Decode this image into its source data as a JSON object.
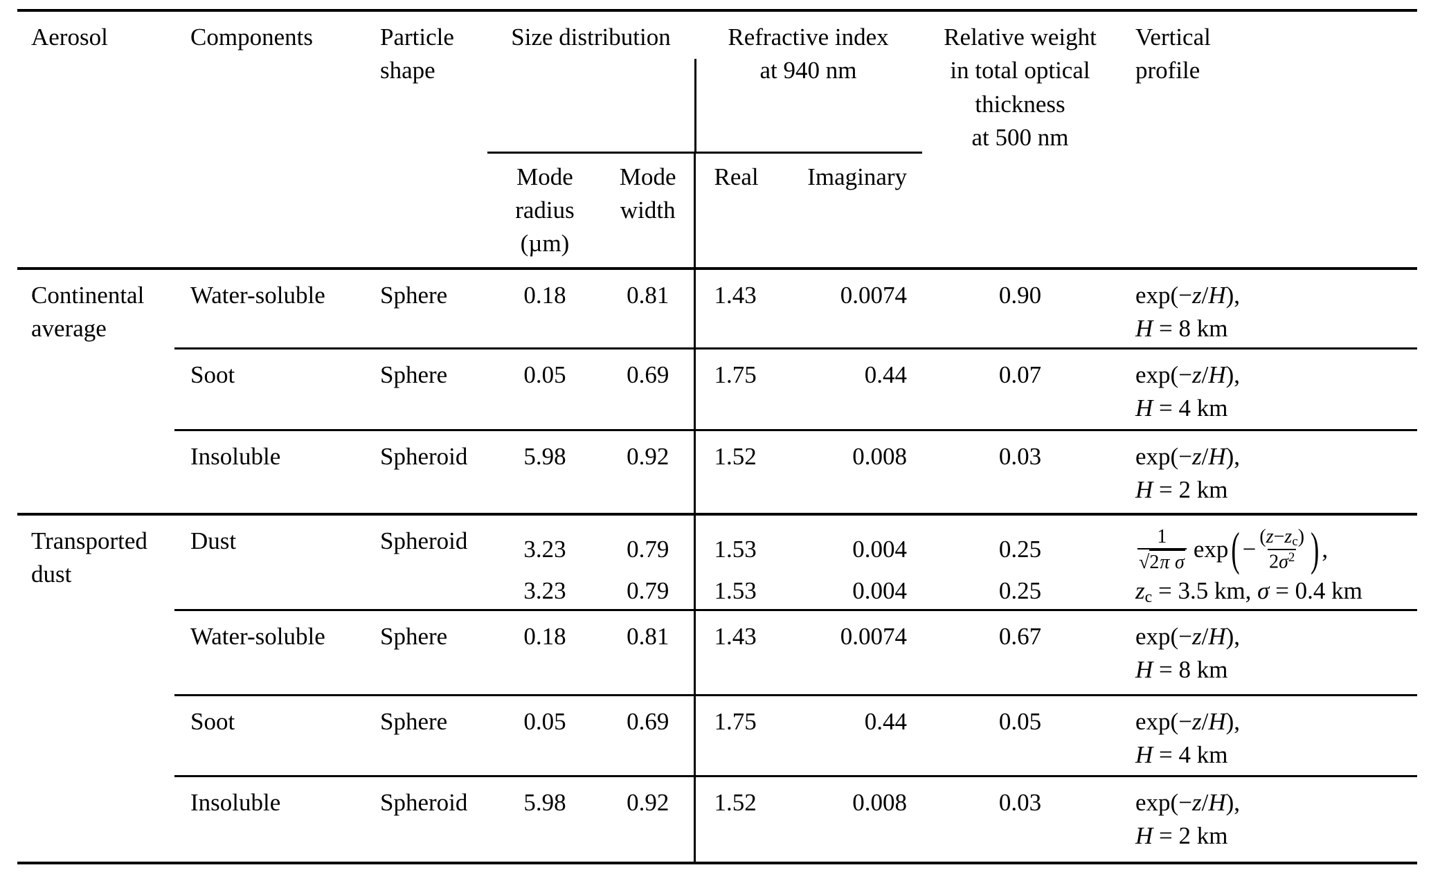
{
  "table": {
    "headers": {
      "aerosol": "Aerosol",
      "components": "Components",
      "particle_shape_lines": [
        "Particle",
        "shape"
      ],
      "size_distribution": "Size distribution",
      "mode_radius_lines": [
        "Mode",
        "radius",
        "(µm)"
      ],
      "mode_width_lines": [
        "Mode",
        "width"
      ],
      "refractive_index_lines": [
        "Refractive index",
        "at 940 nm"
      ],
      "real": "Real",
      "imaginary": "Imaginary",
      "relative_weight_lines": [
        "Relative weight",
        "in total optical",
        "thickness",
        "at 500 nm"
      ],
      "vertical_profile_lines": [
        "Vertical",
        "profile"
      ]
    },
    "groups": [
      {
        "aerosol": "Continental average",
        "rows": [
          {
            "component": "Water-soluble",
            "shape": "Sphere",
            "mode_radius": "0.18",
            "mode_width": "0.81",
            "real": "1.43",
            "imaginary": "0.0074",
            "weight": "0.90",
            "profile": {
              "line1": [
                {
                  "t": "exp("
                },
                {
                  "t": "−"
                },
                {
                  "t": "z",
                  "i": true
                },
                {
                  "t": "/"
                },
                {
                  "t": "H",
                  "i": true
                },
                {
                  "t": "),"
                }
              ],
              "line2": [
                {
                  "t": "H",
                  "i": true
                },
                {
                  "t": " = 8 km"
                }
              ]
            }
          },
          {
            "component": "Soot",
            "shape": "Sphere",
            "mode_radius": "0.05",
            "mode_width": "0.69",
            "real": "1.75",
            "imaginary": "0.44",
            "weight": "0.07",
            "profile": {
              "line1": [
                {
                  "t": "exp("
                },
                {
                  "t": "−"
                },
                {
                  "t": "z",
                  "i": true
                },
                {
                  "t": "/"
                },
                {
                  "t": "H",
                  "i": true
                },
                {
                  "t": "),"
                }
              ],
              "line2": [
                {
                  "t": "H",
                  "i": true
                },
                {
                  "t": " = 4 km"
                }
              ]
            }
          },
          {
            "component": "Insoluble",
            "shape": "Spheroid",
            "mode_radius": "5.98",
            "mode_width": "0.92",
            "real": "1.52",
            "imaginary": "0.008",
            "weight": "0.03",
            "profile": {
              "line1": [
                {
                  "t": "exp("
                },
                {
                  "t": "−"
                },
                {
                  "t": "z",
                  "i": true
                },
                {
                  "t": "/"
                },
                {
                  "t": "H",
                  "i": true
                },
                {
                  "t": "),"
                }
              ],
              "line2": [
                {
                  "t": "H",
                  "i": true
                },
                {
                  "t": " = 2 km"
                }
              ]
            }
          }
        ]
      },
      {
        "aerosol": "Transported dust",
        "rows": [
          {
            "component": "Dust",
            "shape": "Spheroid",
            "mode_radius": [
              "3.23",
              "3.23"
            ],
            "mode_width": [
              "0.79",
              "0.79"
            ],
            "real": [
              "1.53",
              "1.53"
            ],
            "imaginary": [
              "0.004",
              "0.004"
            ],
            "weight": [
              "0.25",
              "0.25"
            ],
            "profile": {
              "line1": [
                {
                  "frac": {
                    "num": [
                      {
                        "t": "1"
                      }
                    ],
                    "den": [
                      {
                        "t": "√"
                      },
                      {
                        "over": [
                          {
                            "t": "2"
                          },
                          {
                            "t": "π",
                            "i": true
                          },
                          {
                            "t": " "
                          },
                          {
                            "t": "σ",
                            "i": true
                          }
                        ]
                      }
                    ]
                  }
                },
                {
                  "t": " exp"
                },
                {
                  "t": "(",
                  "big": true
                },
                {
                  "t": "−"
                },
                {
                  "frac": {
                    "num": [
                      {
                        "t": "("
                      },
                      {
                        "t": "z",
                        "i": true
                      },
                      {
                        "t": "−"
                      },
                      {
                        "t": "z",
                        "i": true
                      },
                      {
                        "t": "c",
                        "sub": true
                      },
                      {
                        "t": ")"
                      }
                    ],
                    "den": [
                      {
                        "t": "2"
                      },
                      {
                        "t": "σ",
                        "i": true
                      },
                      {
                        "t": "2",
                        "sup": true
                      }
                    ]
                  }
                },
                {
                  "t": ")",
                  "big": true
                },
                {
                  "t": ","
                }
              ],
              "line2": [
                {
                  "t": "z",
                  "i": true
                },
                {
                  "t": "c",
                  "sub": true
                },
                {
                  "t": " = 3.5 km, "
                },
                {
                  "t": "σ",
                  "i": true
                },
                {
                  "t": " = 0.4 km"
                }
              ]
            }
          },
          {
            "component": "Water-soluble",
            "shape": "Sphere",
            "mode_radius": "0.18",
            "mode_width": "0.81",
            "real": "1.43",
            "imaginary": "0.0074",
            "weight": "0.67",
            "profile": {
              "line1": [
                {
                  "t": "exp("
                },
                {
                  "t": "−"
                },
                {
                  "t": "z",
                  "i": true
                },
                {
                  "t": "/"
                },
                {
                  "t": "H",
                  "i": true
                },
                {
                  "t": "),"
                }
              ],
              "line2": [
                {
                  "t": "H",
                  "i": true
                },
                {
                  "t": " = 8 km"
                }
              ]
            }
          },
          {
            "component": "Soot",
            "shape": "Sphere",
            "mode_radius": "0.05",
            "mode_width": "0.69",
            "real": "1.75",
            "imaginary": "0.44",
            "weight": "0.05",
            "profile": {
              "line1": [
                {
                  "t": "exp("
                },
                {
                  "t": "−"
                },
                {
                  "t": "z",
                  "i": true
                },
                {
                  "t": "/"
                },
                {
                  "t": "H",
                  "i": true
                },
                {
                  "t": "),"
                }
              ],
              "line2": [
                {
                  "t": "H",
                  "i": true
                },
                {
                  "t": " = 4 km"
                }
              ]
            }
          },
          {
            "component": "Insoluble",
            "shape": "Spheroid",
            "mode_radius": "5.98",
            "mode_width": "0.92",
            "real": "1.52",
            "imaginary": "0.008",
            "weight": "0.03",
            "profile": {
              "line1": [
                {
                  "t": "exp("
                },
                {
                  "t": "−"
                },
                {
                  "t": "z",
                  "i": true
                },
                {
                  "t": "/"
                },
                {
                  "t": "H",
                  "i": true
                },
                {
                  "t": "),"
                }
              ],
              "line2": [
                {
                  "t": "H",
                  "i": true
                },
                {
                  "t": " = 2 km"
                }
              ]
            }
          }
        ]
      }
    ]
  }
}
